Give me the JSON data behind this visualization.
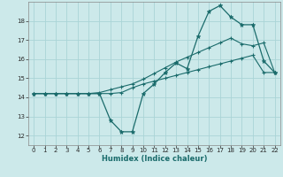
{
  "xlabel": "Humidex (Indice chaleur)",
  "bg_color": "#cce9ea",
  "grid_color": "#aad4d6",
  "line_color": "#1a6b6b",
  "xlim": [
    -0.5,
    22.5
  ],
  "ylim": [
    11.5,
    19.0
  ],
  "xticks": [
    0,
    1,
    2,
    3,
    4,
    5,
    6,
    7,
    8,
    9,
    10,
    11,
    12,
    13,
    14,
    15,
    16,
    17,
    18,
    19,
    20,
    21,
    22
  ],
  "yticks": [
    12,
    13,
    14,
    15,
    16,
    17,
    18
  ],
  "humidex_x": [
    0,
    1,
    2,
    3,
    4,
    5,
    6,
    7,
    8,
    9,
    10,
    11,
    12,
    13,
    14,
    15,
    16,
    17,
    18,
    19,
    20,
    21,
    22
  ],
  "humidex_y": [
    14.2,
    14.2,
    14.2,
    14.2,
    14.2,
    14.2,
    14.2,
    12.8,
    12.2,
    12.2,
    14.2,
    14.7,
    15.3,
    15.8,
    15.5,
    17.2,
    18.5,
    18.8,
    18.2,
    17.8,
    17.8,
    15.9,
    15.3
  ],
  "low_x": [
    0,
    1,
    2,
    3,
    4,
    5,
    6,
    7,
    8,
    9,
    10,
    11,
    12,
    13,
    14,
    15,
    16,
    17,
    18,
    19,
    20,
    21,
    22
  ],
  "low_y": [
    14.2,
    14.2,
    14.2,
    14.2,
    14.2,
    14.2,
    14.2,
    14.2,
    14.25,
    14.5,
    14.7,
    14.85,
    15.0,
    15.15,
    15.3,
    15.45,
    15.6,
    15.75,
    15.9,
    16.05,
    16.2,
    15.3,
    15.3
  ],
  "high_x": [
    0,
    1,
    2,
    3,
    4,
    5,
    6,
    7,
    8,
    9,
    10,
    11,
    12,
    13,
    14,
    15,
    16,
    17,
    18,
    19,
    20,
    21,
    22
  ],
  "high_y": [
    14.2,
    14.2,
    14.2,
    14.2,
    14.2,
    14.2,
    14.25,
    14.4,
    14.55,
    14.7,
    14.95,
    15.25,
    15.55,
    15.85,
    16.1,
    16.35,
    16.6,
    16.85,
    17.1,
    16.8,
    16.7,
    16.85,
    15.3
  ]
}
